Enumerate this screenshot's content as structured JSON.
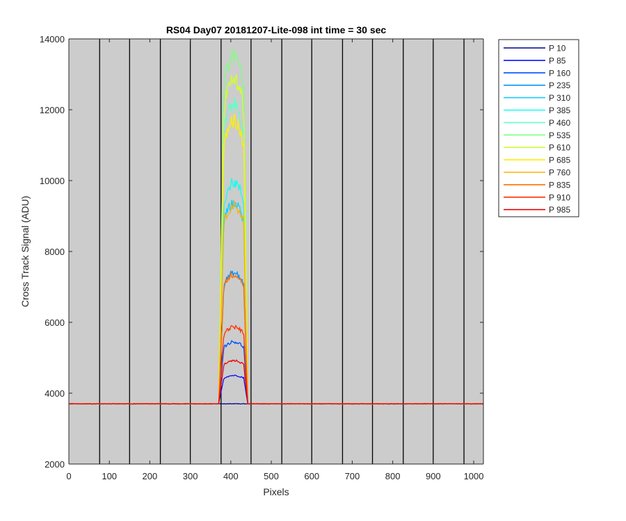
{
  "chart_data": {
    "type": "line",
    "title": "RS04 Day07 20181207-Lite-098 int time = 30 sec",
    "xlabel": "Pixels",
    "ylabel": "Cross Track Signal (ADU)",
    "xlim": [
      0,
      1024
    ],
    "ylim": [
      2000,
      14000
    ],
    "xticks": [
      0,
      100,
      200,
      300,
      400,
      500,
      600,
      700,
      800,
      900,
      1000
    ],
    "yticks": [
      2000,
      4000,
      6000,
      8000,
      10000,
      12000,
      14000
    ],
    "x_tick_labels": [
      "0",
      "100",
      "200",
      "300",
      "400",
      "500",
      "600",
      "700",
      "800",
      "900",
      "1000"
    ],
    "y_tick_labels": [
      "2000",
      "4000",
      "6000",
      "8000",
      "10000",
      "12000",
      "14000"
    ],
    "background": "#cccccc",
    "vertical_gridlines_x": [
      76,
      150,
      226,
      300,
      376,
      450,
      526,
      600,
      676,
      750,
      826,
      900,
      976
    ],
    "legend_position": "outside-top-right",
    "baseline": 3700,
    "plateau": {
      "rise_start": 370,
      "start": 383,
      "end": 432,
      "fall_end": 442
    },
    "series": [
      {
        "name": "P 10",
        "color": "#00008f",
        "peak": 3700
      },
      {
        "name": "P 85",
        "color": "#0010ff",
        "peak": 4500
      },
      {
        "name": "P 160",
        "color": "#0050ff",
        "peak": 5450
      },
      {
        "name": "P 235",
        "color": "#0090ff",
        "peak": 7380
      },
      {
        "name": "P 310",
        "color": "#10cfff",
        "peak": 9350
      },
      {
        "name": "P 385",
        "color": "#10ffef",
        "peak": 9950
      },
      {
        "name": "P 460",
        "color": "#60ffc8",
        "peak": 12150
      },
      {
        "name": "P 535",
        "color": "#7fff7f",
        "peak": 13550
      },
      {
        "name": "P 610",
        "color": "#cfff30",
        "peak": 12850
      },
      {
        "name": "P 685",
        "color": "#ffef00",
        "peak": 11700
      },
      {
        "name": "P 760",
        "color": "#ffb000",
        "peak": 9300
      },
      {
        "name": "P 835",
        "color": "#ff7000",
        "peak": 7350
      },
      {
        "name": "P 910",
        "color": "#ff3000",
        "peak": 5870
      },
      {
        "name": "P 985",
        "color": "#ef0000",
        "peak": 4920
      }
    ]
  }
}
